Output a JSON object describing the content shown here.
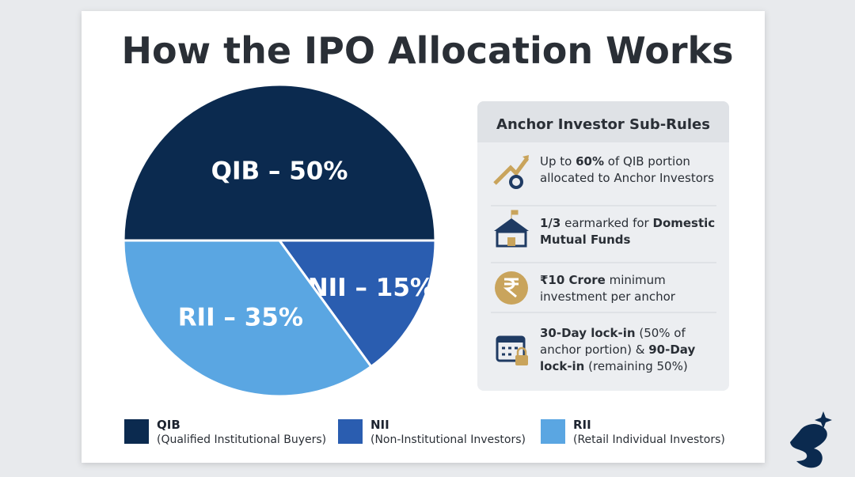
{
  "chart_data": {
    "type": "pie",
    "title": "How the IPO Allocation Works",
    "categories": [
      "QIB",
      "NII",
      "RII"
    ],
    "values": [
      50,
      15,
      35
    ],
    "value_labels": [
      "QIB – 50%",
      "NII – 15%",
      "RII – 35%"
    ],
    "colors": [
      "#0b2a4f",
      "#2a5db0",
      "#5aa6e2"
    ],
    "legend_descriptions": [
      "(Qualified Institutional Buyers)",
      "(Non-Institutional Investors)",
      "(Retail Individual Investors)"
    ]
  },
  "panel": {
    "title": "Anchor Investor Sub-Rules",
    "items": [
      {
        "lines": [
          [
            {
              "text": "Up to ",
              "bold": false
            },
            {
              "text": "60%",
              "bold": true
            },
            {
              "text": " of QIB portion",
              "bold": false
            }
          ],
          [
            {
              "text": "allocated to Anchor Investors",
              "bold": false
            }
          ]
        ]
      },
      {
        "lines": [
          [
            {
              "text": "1/3",
              "bold": true
            },
            {
              "text": " earmarked for ",
              "bold": false
            },
            {
              "text": "Domestic",
              "bold": true
            }
          ],
          [
            {
              "text": "Mutual Funds",
              "bold": true
            }
          ]
        ]
      },
      {
        "lines": [
          [
            {
              "text": "₹10 Crore",
              "bold": true
            },
            {
              "text": " minimum",
              "bold": false
            }
          ],
          [
            {
              "text": "investment per anchor",
              "bold": false
            }
          ]
        ]
      },
      {
        "lines": [
          [
            {
              "text": "30-Day lock-in",
              "bold": true
            },
            {
              "text": " (50% of",
              "bold": false
            }
          ],
          [
            {
              "text": "anchor portion) & ",
              "bold": false
            },
            {
              "text": "90-Day",
              "bold": true
            }
          ],
          [
            {
              "text": "lock-in",
              "bold": true
            },
            {
              "text": " (remaining 50%)",
              "bold": false
            }
          ]
        ]
      }
    ]
  }
}
